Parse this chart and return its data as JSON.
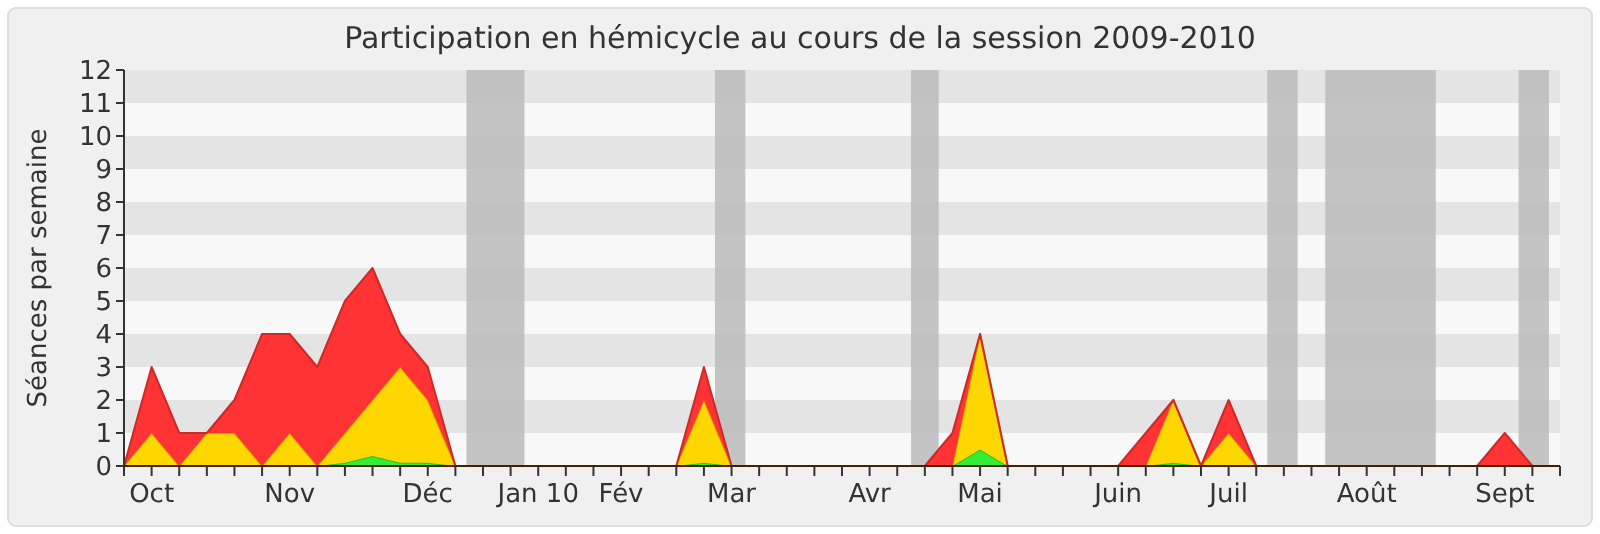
{
  "chart_data": {
    "type": "area",
    "title": "Participation en hémicycle au cours de la session 2009-2010",
    "ylabel": "Séances par semaine",
    "stacked": true,
    "categories": [
      null,
      "Oct",
      null,
      null,
      null,
      null,
      "Nov",
      null,
      null,
      null,
      null,
      "Déc",
      null,
      null,
      null,
      "Jan 10",
      null,
      null,
      "Fév",
      null,
      null,
      null,
      "Mar",
      null,
      null,
      null,
      null,
      "Avr",
      null,
      null,
      null,
      "Mai",
      null,
      null,
      null,
      null,
      "Juin",
      null,
      null,
      null,
      "Juil",
      null,
      null,
      null,
      null,
      "Août",
      null,
      null,
      null,
      null,
      "Sept",
      null,
      null
    ],
    "ylim": [
      0,
      12
    ],
    "yticks": [
      0,
      1,
      2,
      3,
      4,
      5,
      6,
      7,
      8,
      9,
      10,
      11,
      12
    ],
    "series": [
      {
        "color": "#33ee33",
        "values": [
          0,
          0,
          0,
          0,
          0,
          0,
          0,
          0,
          0.1,
          0.3,
          0.1,
          0.1,
          0,
          0,
          0,
          0,
          0,
          0,
          0,
          0,
          0,
          0.1,
          0,
          0,
          0,
          0,
          0,
          0,
          0,
          0,
          0,
          0.5,
          0,
          0,
          0,
          0,
          0,
          0,
          0.1,
          0,
          0,
          0,
          0,
          0,
          0,
          0,
          0,
          0,
          0,
          0,
          0,
          0,
          0
        ]
      },
      {
        "color": "#ffd700",
        "values": [
          0,
          1,
          0,
          1,
          1,
          0,
          1,
          0,
          0.9,
          1.7,
          2.9,
          1.9,
          0,
          0,
          0,
          0,
          0,
          0,
          0,
          0,
          0,
          1.9,
          0,
          0,
          0,
          0,
          0,
          0,
          0,
          0,
          0,
          3.5,
          0,
          0,
          0,
          0,
          0,
          0,
          1.9,
          0,
          1,
          0,
          0,
          0,
          0,
          0,
          0,
          0,
          0,
          0,
          0,
          0,
          0
        ]
      },
      {
        "color": "#ff3333",
        "values": [
          0,
          2,
          1,
          0,
          1,
          4,
          3,
          3,
          4,
          4,
          1,
          1,
          0,
          0,
          0,
          0,
          0,
          0,
          0,
          0,
          0,
          1,
          0,
          0,
          0,
          0,
          0,
          0,
          0,
          0,
          1,
          0,
          0,
          0,
          0,
          0,
          0,
          1,
          0,
          0,
          1,
          0,
          0,
          0,
          0,
          0,
          0,
          0,
          0,
          0,
          1,
          0,
          0
        ]
      }
    ]
  }
}
